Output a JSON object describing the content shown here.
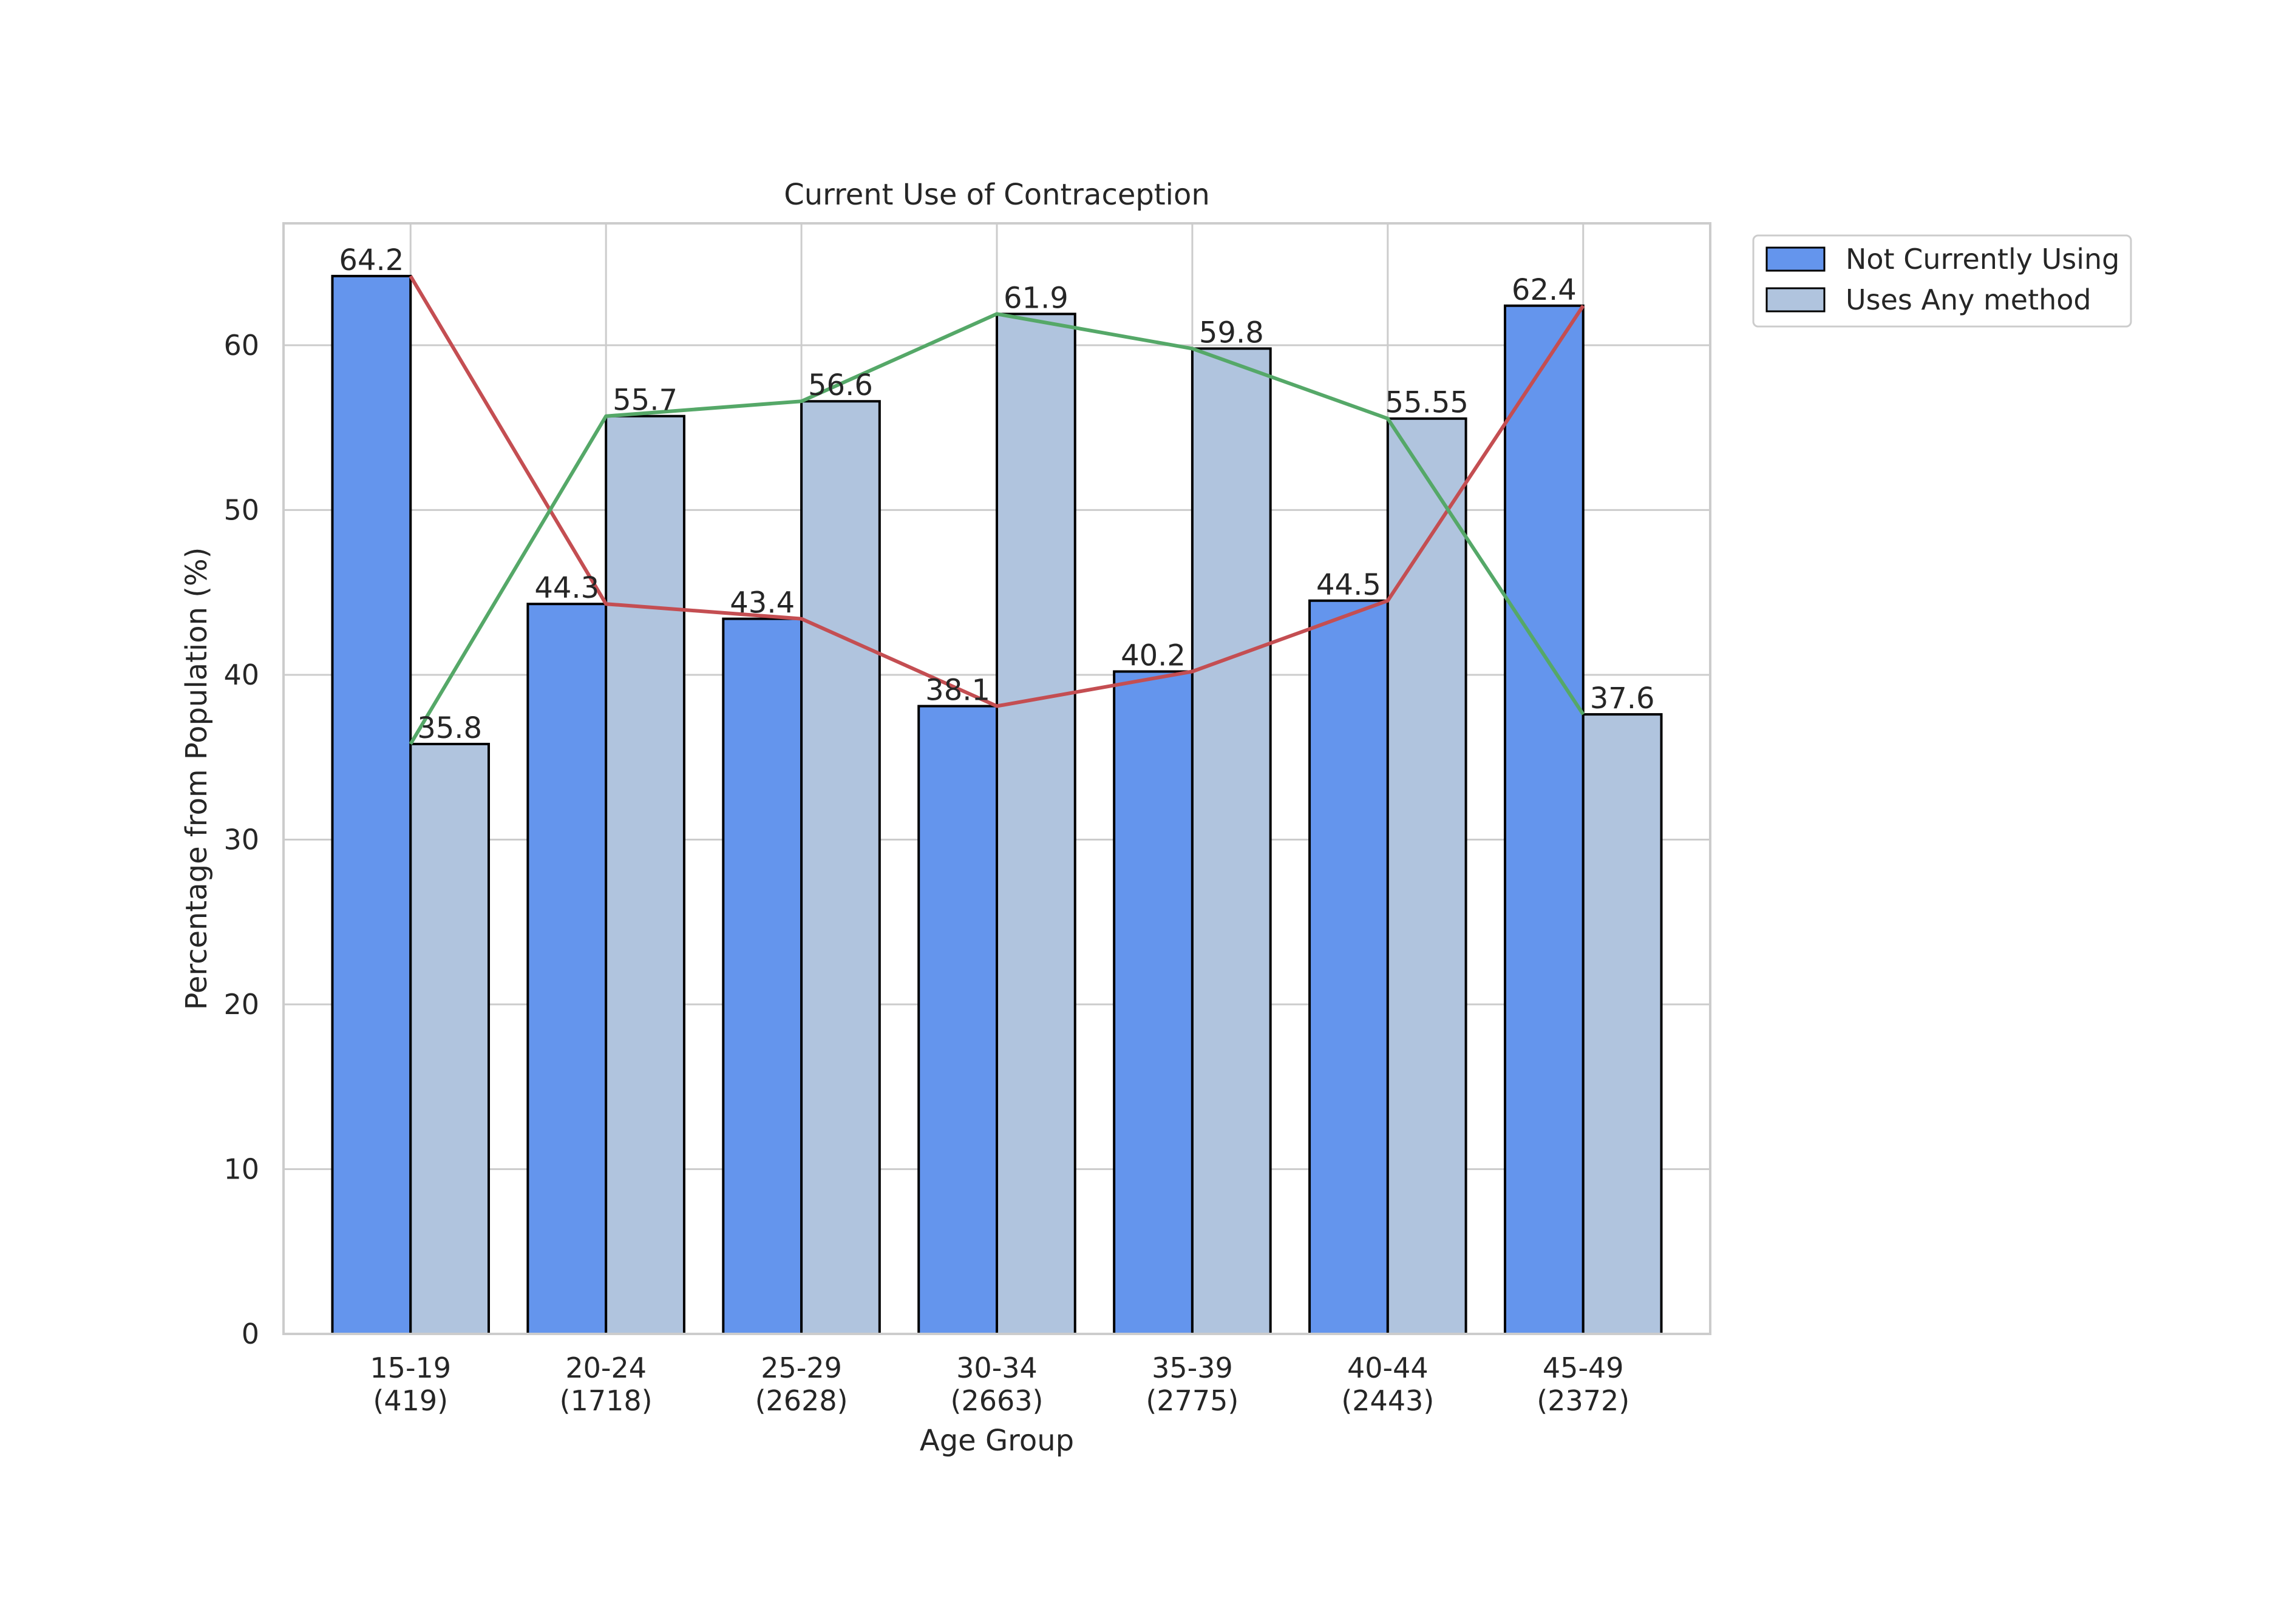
{
  "chart_data": {
    "type": "bar",
    "title": "Current Use of Contraception",
    "xlabel": "Age Group",
    "ylabel": "Percentage from Population (%)",
    "categories": [
      [
        "15-19",
        "(419)"
      ],
      [
        "20-24",
        "(1718)"
      ],
      [
        "25-29",
        "(2628)"
      ],
      [
        "30-34",
        "(2663)"
      ],
      [
        "35-39",
        "(2775)"
      ],
      [
        "40-44",
        "(2443)"
      ],
      [
        "45-49",
        "(2372)"
      ]
    ],
    "ylim": [
      0,
      67.4
    ],
    "yticks": [
      0,
      10,
      20,
      30,
      40,
      50,
      60
    ],
    "grid": true,
    "legend_position": "outside-top-right",
    "series": [
      {
        "name": "Not Currently Using",
        "values": [
          64.2,
          44.3,
          43.4,
          38.1,
          40.2,
          44.5,
          62.4
        ],
        "labels": [
          "64.2",
          "44.3",
          "43.4",
          "38.1",
          "40.2",
          "44.5",
          "62.4"
        ],
        "color": "#6495ED",
        "line_color": "#C44E52"
      },
      {
        "name": "Uses Any method",
        "values": [
          35.8,
          55.7,
          56.6,
          61.9,
          59.8,
          55.55,
          37.6
        ],
        "labels": [
          "35.8",
          "55.7",
          "56.6",
          "61.9",
          "59.8",
          "55.55",
          "37.6"
        ],
        "color": "#B0C4DE",
        "line_color": "#55A868"
      }
    ]
  }
}
